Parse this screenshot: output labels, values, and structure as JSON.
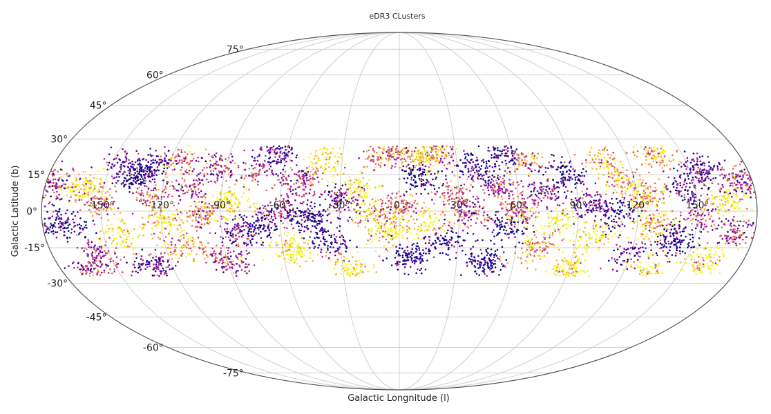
{
  "chart_data": {
    "type": "scatter",
    "projection": "mollweide",
    "title": "eDR3 CLusters",
    "xlabel": "Galactic Longnitude (l)",
    "ylabel": "Galactic Latitude (b)",
    "grid": true,
    "x_range": [
      -180,
      180
    ],
    "y_range": [
      -90,
      90
    ],
    "latitude_data_extent": [
      -27,
      27
    ],
    "x_ticks": [
      {
        "value": -150,
        "label": "-150°"
      },
      {
        "value": -120,
        "label": "-120°"
      },
      {
        "value": -90,
        "label": "-90°"
      },
      {
        "value": -60,
        "label": "-60°"
      },
      {
        "value": -30,
        "label": "-30°"
      },
      {
        "value": 0,
        "label": "0°"
      },
      {
        "value": 30,
        "label": "30°"
      },
      {
        "value": 60,
        "label": "60°"
      },
      {
        "value": 90,
        "label": "90°"
      },
      {
        "value": 120,
        "label": "120°"
      },
      {
        "value": 150,
        "label": "150°"
      }
    ],
    "y_ticks": [
      {
        "value": 75,
        "label": "75°"
      },
      {
        "value": 60,
        "label": "60°"
      },
      {
        "value": 45,
        "label": "45°"
      },
      {
        "value": 30,
        "label": "30°"
      },
      {
        "value": 15,
        "label": "15°"
      },
      {
        "value": 0,
        "label": "0°"
      },
      {
        "value": -15,
        "label": "-15°"
      },
      {
        "value": -30,
        "label": "-30°"
      },
      {
        "value": -45,
        "label": "-45°"
      },
      {
        "value": -60,
        "label": "-60°"
      },
      {
        "value": -75,
        "label": "-75°"
      }
    ],
    "colormap": [
      "#0d0887",
      "#6a00a8",
      "#b12a90",
      "#e16462",
      "#fca636",
      "#f0f921"
    ],
    "clusters": [
      {
        "l": -170,
        "b": -5
      },
      {
        "l": -160,
        "b": 10
      },
      {
        "l": -155,
        "b": -18
      },
      {
        "l": -150,
        "b": 3
      },
      {
        "l": -145,
        "b": 20
      },
      {
        "l": -140,
        "b": -10
      },
      {
        "l": -135,
        "b": 14
      },
      {
        "l": -130,
        "b": -22
      },
      {
        "l": -125,
        "b": 6
      },
      {
        "l": -120,
        "b": -4
      },
      {
        "l": -115,
        "b": 22
      },
      {
        "l": -110,
        "b": -14
      },
      {
        "l": -105,
        "b": 10
      },
      {
        "l": -100,
        "b": -2
      },
      {
        "l": -95,
        "b": 18
      },
      {
        "l": -90,
        "b": -20
      },
      {
        "l": -85,
        "b": 4
      },
      {
        "l": -80,
        "b": -9
      },
      {
        "l": -75,
        "b": 16
      },
      {
        "l": -70,
        "b": -6
      },
      {
        "l": -65,
        "b": 24
      },
      {
        "l": -60,
        "b": 0
      },
      {
        "l": -55,
        "b": -16
      },
      {
        "l": -50,
        "b": 12
      },
      {
        "l": -45,
        "b": -3
      },
      {
        "l": -40,
        "b": 20
      },
      {
        "l": -35,
        "b": -12
      },
      {
        "l": -30,
        "b": 5
      },
      {
        "l": -25,
        "b": -24
      },
      {
        "l": -20,
        "b": 9
      },
      {
        "l": -15,
        "b": -1
      },
      {
        "l": -10,
        "b": 22
      },
      {
        "l": -5,
        "b": -8
      },
      {
        "l": 0,
        "b": 2
      },
      {
        "l": 5,
        "b": -19
      },
      {
        "l": 10,
        "b": 14
      },
      {
        "l": 15,
        "b": -5
      },
      {
        "l": 20,
        "b": 24
      },
      {
        "l": 25,
        "b": -13
      },
      {
        "l": 30,
        "b": 6
      },
      {
        "l": 35,
        "b": -2
      },
      {
        "l": 40,
        "b": 18
      },
      {
        "l": 45,
        "b": -21
      },
      {
        "l": 50,
        "b": 10
      },
      {
        "l": 55,
        "b": -7
      },
      {
        "l": 60,
        "b": 1
      },
      {
        "l": 65,
        "b": 21
      },
      {
        "l": 70,
        "b": -15
      },
      {
        "l": 75,
        "b": 8
      },
      {
        "l": 80,
        "b": -4
      },
      {
        "l": 85,
        "b": 16
      },
      {
        "l": 90,
        "b": -24
      },
      {
        "l": 95,
        "b": 3
      },
      {
        "l": 100,
        "b": -10
      },
      {
        "l": 105,
        "b": 20
      },
      {
        "l": 110,
        "b": -1
      },
      {
        "l": 115,
        "b": 12
      },
      {
        "l": 120,
        "b": -18
      },
      {
        "l": 125,
        "b": 6
      },
      {
        "l": 130,
        "b": -6
      },
      {
        "l": 135,
        "b": 23
      },
      {
        "l": 140,
        "b": -12
      },
      {
        "l": 145,
        "b": 9
      },
      {
        "l": 150,
        "b": -3
      },
      {
        "l": 155,
        "b": 17
      },
      {
        "l": 160,
        "b": -21
      },
      {
        "l": 165,
        "b": 4
      },
      {
        "l": 170,
        "b": -8
      },
      {
        "l": 175,
        "b": 13
      },
      {
        "l": -175,
        "b": 11
      },
      {
        "l": -165,
        "b": -25
      },
      {
        "l": 12,
        "b": 23
      },
      {
        "l": -2,
        "b": 25
      },
      {
        "l": 55,
        "b": 25
      },
      {
        "l": -128,
        "b": 19
      },
      {
        "l": 132,
        "b": -24
      }
    ]
  }
}
